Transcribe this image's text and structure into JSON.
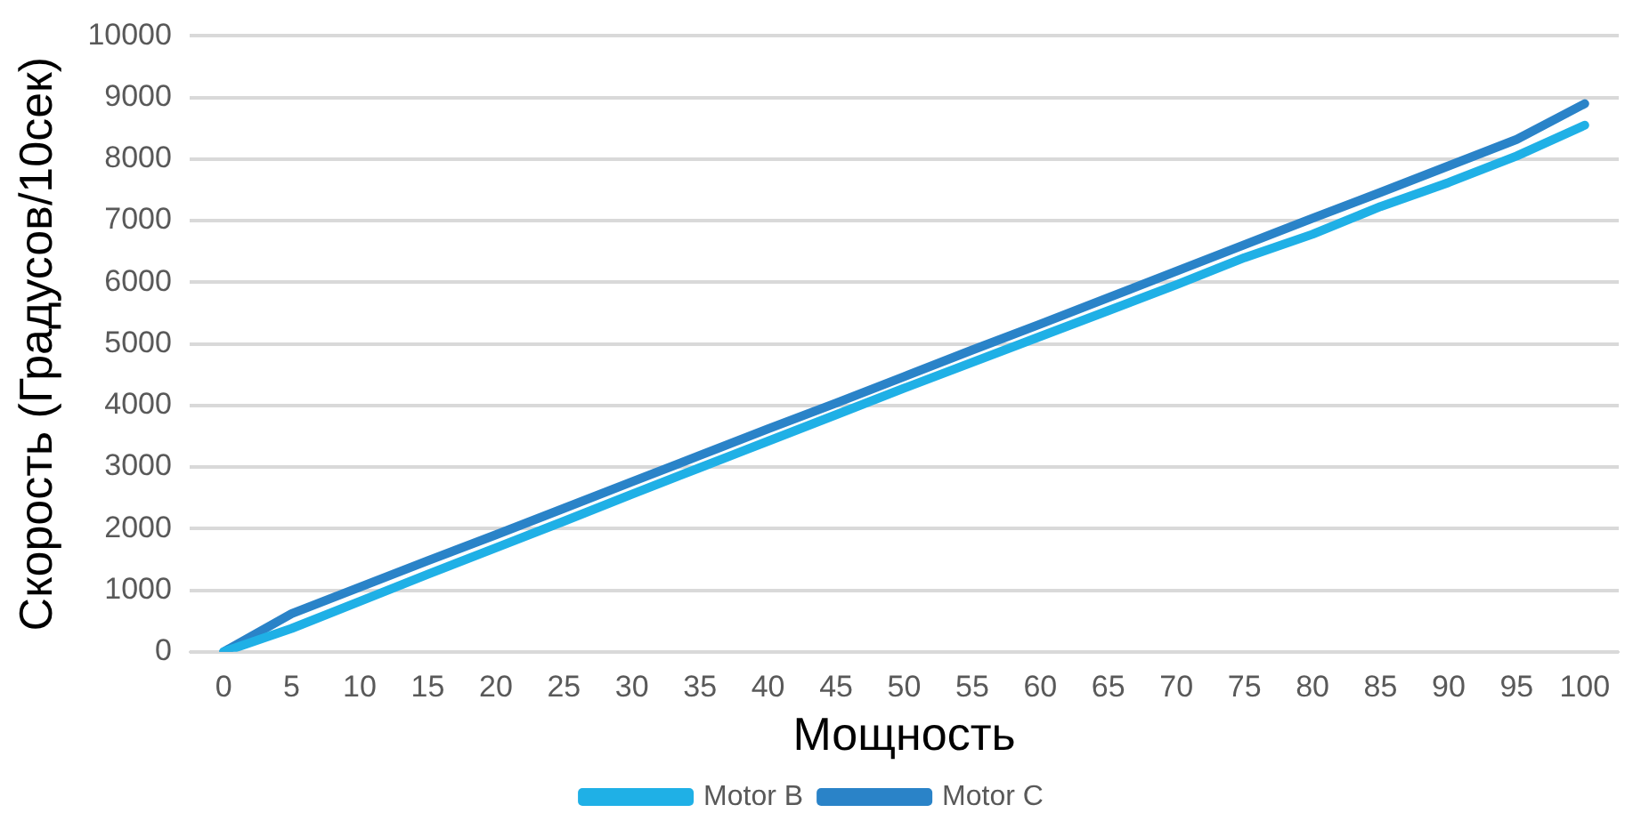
{
  "chart_data": {
    "type": "line",
    "xlabel": "Мощность",
    "ylabel": "Скорость (Градусов/10сек)",
    "categories": [
      "0",
      "5",
      "10",
      "15",
      "20",
      "25",
      "30",
      "35",
      "40",
      "45",
      "50",
      "55",
      "60",
      "65",
      "70",
      "75",
      "80",
      "85",
      "90",
      "95",
      "100"
    ],
    "series": [
      {
        "name": "Motor B",
        "color": "#1fb0e6",
        "values": [
          0,
          380,
          820,
          1260,
          1690,
          2120,
          2560,
          2990,
          3420,
          3850,
          4280,
          4700,
          5120,
          5540,
          5960,
          6400,
          6780,
          7230,
          7620,
          8050,
          8550
        ]
      },
      {
        "name": "Motor C",
        "color": "#2a83c8",
        "values": [
          0,
          620,
          1050,
          1480,
          1900,
          2330,
          2760,
          3190,
          3620,
          4040,
          4470,
          4900,
          5320,
          5750,
          6180,
          6610,
          7040,
          7460,
          7890,
          8320,
          8900
        ]
      }
    ],
    "ylim": [
      0,
      10000
    ],
    "yticks": [
      0,
      1000,
      2000,
      3000,
      4000,
      5000,
      6000,
      7000,
      8000,
      9000,
      10000
    ],
    "grid": "y",
    "legend": "bottom",
    "marker": "none",
    "line_style": "solid"
  }
}
